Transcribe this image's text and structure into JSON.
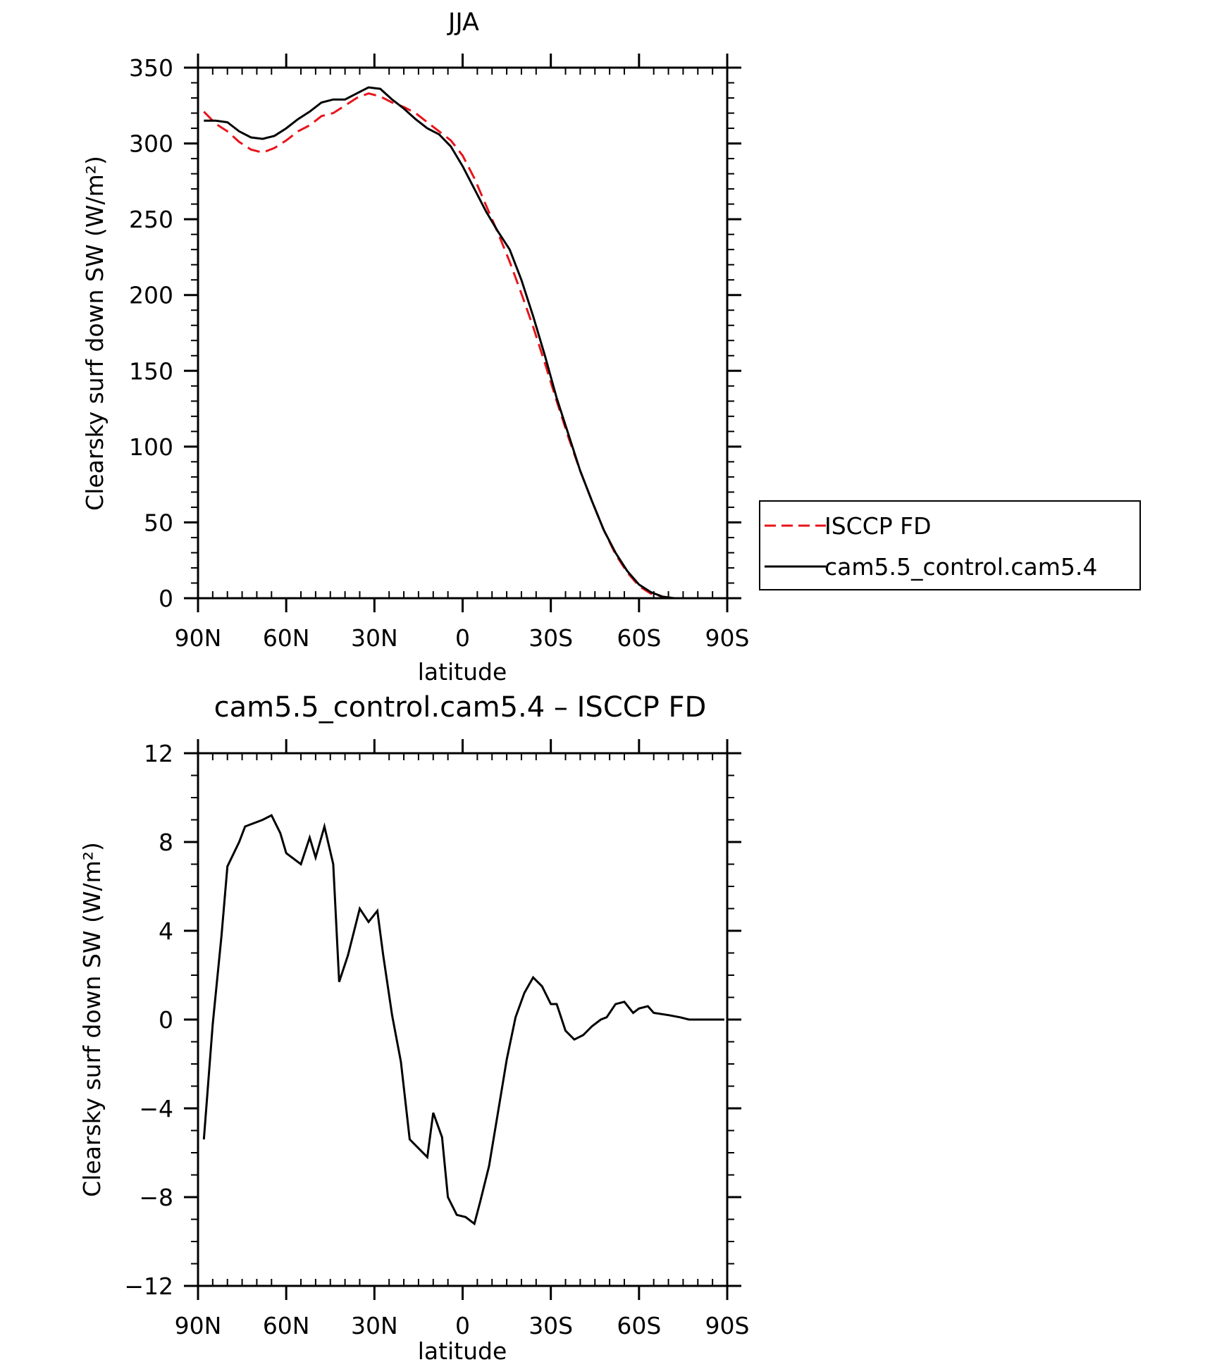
{
  "chart_data": [
    {
      "type": "line",
      "title": "JJA",
      "xlabel": "latitude",
      "ylabel": "Clearsky surf down SW (W/m²)",
      "xlim": [
        90,
        -90
      ],
      "ylim": [
        0,
        350
      ],
      "x_ticks": [
        90,
        60,
        30,
        0,
        -30,
        -60,
        -90
      ],
      "x_tick_labels": [
        "90N",
        "60N",
        "30N",
        "0",
        "30S",
        "60S",
        "90S"
      ],
      "y_ticks": [
        0,
        50,
        100,
        150,
        200,
        250,
        300,
        350
      ],
      "y_tick_labels": [
        "0",
        "50",
        "100",
        "150",
        "200",
        "250",
        "300",
        "350"
      ],
      "grid": false,
      "legend_position": "right, outside plot",
      "series": [
        {
          "name": "ISCCP FD",
          "color": "#e8141b",
          "dash": "dashed",
          "x": [
            88,
            84,
            80,
            76,
            72,
            68,
            64,
            60,
            56,
            52,
            48,
            44,
            40,
            36,
            32,
            28,
            24,
            20,
            16,
            12,
            8,
            4,
            0,
            -4,
            -8,
            -12,
            -16,
            -20,
            -24,
            -28,
            -32,
            -36,
            -40,
            -44,
            -48,
            -52,
            -56,
            -60,
            -64,
            -68,
            -72,
            -76,
            -80,
            -84,
            -88
          ],
          "y": [
            321,
            313,
            308,
            301,
            296,
            294,
            297,
            302,
            308,
            312,
            318,
            320,
            325,
            330,
            333,
            331,
            327,
            324,
            320,
            314,
            308,
            302,
            292,
            277,
            259,
            241,
            222,
            201,
            179,
            155,
            130,
            106,
            84,
            64,
            45,
            29,
            17,
            8,
            3,
            1,
            0,
            0,
            0,
            0,
            0
          ]
        },
        {
          "name": "cam5.5_control.cam5.4",
          "color": "#000000",
          "dash": "solid",
          "x": [
            88,
            84,
            80,
            76,
            72,
            68,
            64,
            60,
            56,
            52,
            48,
            44,
            40,
            36,
            32,
            28,
            24,
            20,
            16,
            12,
            8,
            4,
            0,
            -4,
            -8,
            -12,
            -16,
            -20,
            -24,
            -28,
            -32,
            -36,
            -40,
            -44,
            -48,
            -52,
            -56,
            -60,
            -64,
            -68,
            -72,
            -76,
            -80,
            -84,
            -88
          ],
          "y": [
            315,
            315,
            314,
            308,
            304,
            303,
            305,
            310,
            316,
            321,
            327,
            329,
            329,
            333,
            337,
            336,
            329,
            323,
            316,
            310,
            306,
            298,
            285,
            270,
            255,
            242,
            230,
            210,
            186,
            160,
            132,
            108,
            84,
            64,
            45,
            30,
            18,
            9,
            4,
            1,
            0,
            0,
            0,
            0,
            0
          ]
        }
      ]
    },
    {
      "type": "line",
      "title": "cam5.5_control.cam5.4 – ISCCP FD",
      "xlabel": "latitude",
      "ylabel": "Clearsky surf down SW (W/m²)",
      "xlim": [
        90,
        -90
      ],
      "ylim": [
        -12,
        12
      ],
      "x_ticks": [
        90,
        60,
        30,
        0,
        -30,
        -60,
        -90
      ],
      "x_tick_labels": [
        "90N",
        "60N",
        "30N",
        "0",
        "30S",
        "60S",
        "90S"
      ],
      "y_ticks": [
        -12,
        -8,
        -4,
        0,
        4,
        8,
        12
      ],
      "y_tick_labels": [
        "−12",
        "−8",
        "−4",
        "0",
        "4",
        "8",
        "12"
      ],
      "grid": false,
      "series": [
        {
          "color": "#000000",
          "dash": "solid",
          "x": [
            88,
            85,
            82,
            80,
            76,
            74,
            68,
            65,
            62,
            60,
            55,
            52,
            50,
            47,
            44,
            42,
            39,
            35,
            32,
            29,
            27,
            24,
            21,
            18,
            15,
            12,
            10,
            7,
            5,
            2,
            -1,
            -4,
            -6,
            -9,
            -12,
            -15,
            -18,
            -21,
            -24,
            -27,
            -30,
            -32,
            -35,
            -38,
            -41,
            -44,
            -47,
            -49,
            -52,
            -55,
            -58,
            -60,
            -63,
            -65,
            -70,
            -74,
            -77,
            -80,
            -83,
            -86,
            -89
          ],
          "y": [
            -5.4,
            -0.2,
            3.8,
            6.9,
            8.0,
            8.7,
            9.0,
            9.2,
            8.4,
            7.5,
            7.0,
            8.2,
            7.3,
            8.7,
            7.0,
            1.7,
            2.9,
            5.0,
            4.4,
            4.9,
            2.9,
            0.2,
            -1.9,
            -5.4,
            -5.8,
            -6.2,
            -4.2,
            -5.3,
            -8.0,
            -8.8,
            -8.9,
            -9.2,
            -8.2,
            -6.6,
            -4.2,
            -1.8,
            0.1,
            1.2,
            1.9,
            1.5,
            0.7,
            0.7,
            -0.5,
            -0.9,
            -0.7,
            -0.3,
            0.0,
            0.1,
            0.7,
            0.8,
            0.3,
            0.5,
            0.6,
            0.3,
            0.2,
            0.1,
            0.0,
            0.0,
            0.0,
            0.0,
            0.0
          ]
        }
      ]
    }
  ]
}
